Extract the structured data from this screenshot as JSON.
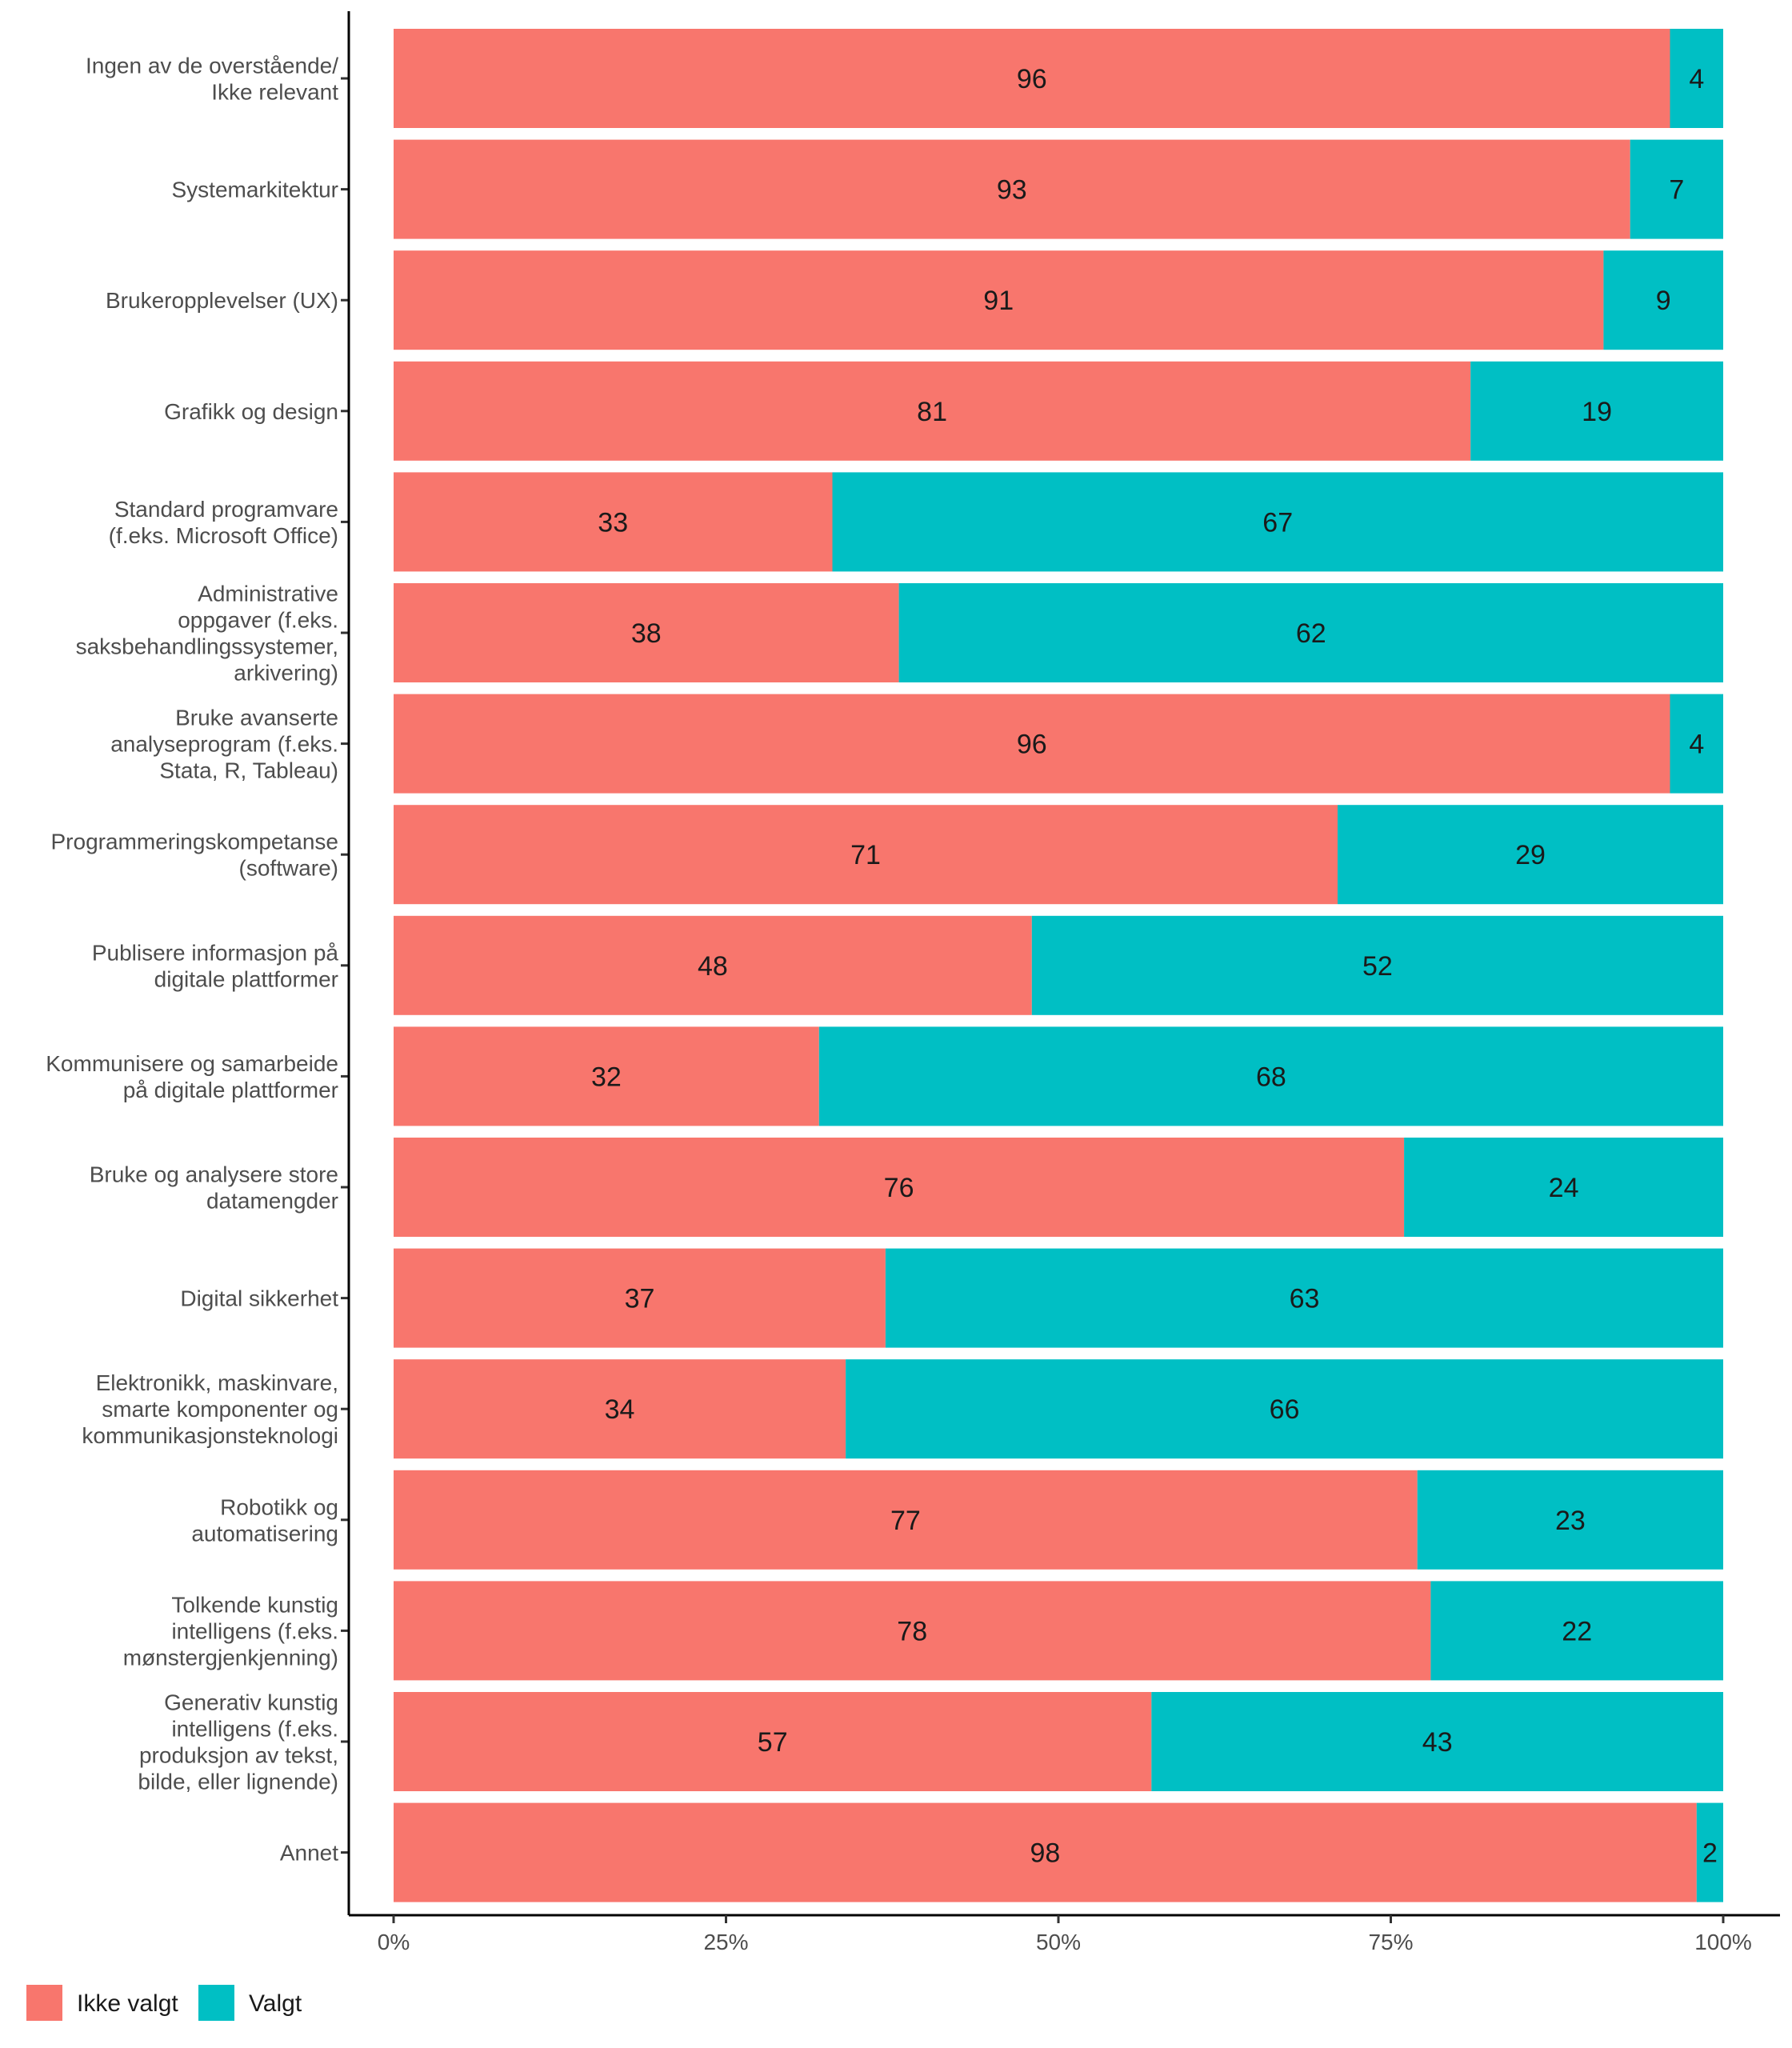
{
  "chart_data": {
    "type": "bar",
    "orientation": "horizontal",
    "stacked": true,
    "normalized": true,
    "categories": [
      [
        "Ingen av de overstående/",
        "Ikke relevant"
      ],
      [
        "Systemarkitektur"
      ],
      [
        "Brukeropplevelser (UX)"
      ],
      [
        "Grafikk og design"
      ],
      [
        "Standard programvare",
        "(f.eks. Microsoft Office)"
      ],
      [
        "Administrative",
        "oppgaver (f.eks.",
        "saksbehandlingssystemer,",
        "arkivering)"
      ],
      [
        "Bruke avanserte",
        "analyseprogram (f.eks.",
        "Stata, R, Tableau)"
      ],
      [
        "Programmeringskompetanse",
        "(software)"
      ],
      [
        "Publisere informasjon på",
        "digitale plattformer"
      ],
      [
        "Kommunisere og samarbeide",
        "på digitale plattformer"
      ],
      [
        "Bruke og analysere store",
        "datamengder"
      ],
      [
        "Digital sikkerhet"
      ],
      [
        "Elektronikk, maskinvare,",
        "smarte komponenter og",
        "kommunikasjonsteknologi"
      ],
      [
        "Robotikk og",
        "automatisering"
      ],
      [
        "Tolkende kunstig",
        "intelligens (f.eks.",
        "mønstergjenkjenning)"
      ],
      [
        "Generativ kunstig",
        "intelligens (f.eks.",
        "produksjon av tekst,",
        "bilde, eller lignende)"
      ],
      [
        "Annet"
      ]
    ],
    "series": [
      {
        "name": "Ikke valgt",
        "color": "#F8766D",
        "values": [
          96,
          93,
          91,
          81,
          33,
          38,
          96,
          71,
          48,
          32,
          76,
          37,
          34,
          77,
          78,
          57,
          98
        ],
        "labels": [
          "96",
          "93",
          "91",
          "81",
          "33",
          "38",
          "96",
          "71",
          "48",
          "32",
          "76",
          "37",
          "34",
          "77",
          "78",
          "57",
          "98"
        ]
      },
      {
        "name": "Valgt",
        "color": "#00BFC4",
        "values": [
          4,
          7,
          9,
          19,
          67,
          62,
          4,
          29,
          52,
          68,
          24,
          63,
          66,
          23,
          22,
          43,
          2
        ],
        "labels": [
          "4",
          "7",
          "9",
          "19",
          "67",
          "62",
          "4",
          "29",
          "52",
          "68",
          "24",
          "63",
          "66",
          "23",
          "22",
          "43",
          "2"
        ]
      }
    ],
    "xlim": [
      0,
      100
    ],
    "x_ticks": [
      0,
      25,
      50,
      75,
      100
    ],
    "x_tick_labels": [
      "0%",
      "25%",
      "50%",
      "75%",
      "100%"
    ],
    "title": "",
    "xlabel": "",
    "ylabel": "",
    "grid": false,
    "legend": {
      "position": "bottom-left",
      "entries": [
        {
          "label": "Ikke valgt",
          "color": "#F8766D"
        },
        {
          "label": "Valgt",
          "color": "#00BFC4"
        }
      ]
    }
  }
}
